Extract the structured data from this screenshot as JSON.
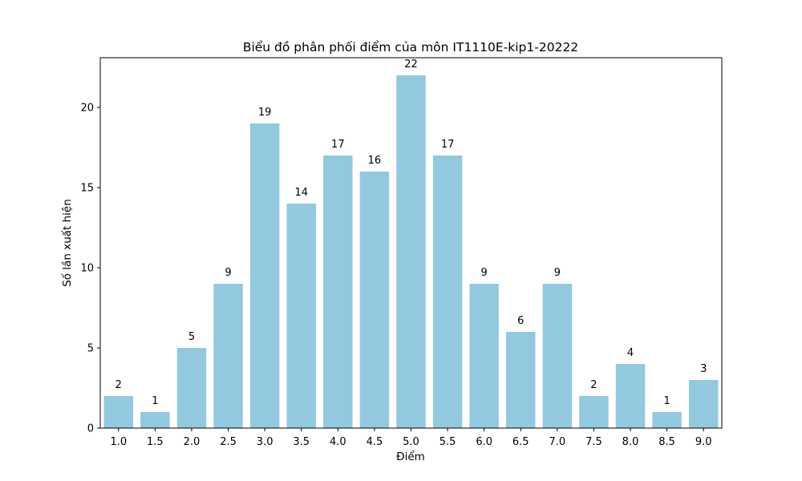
{
  "chart_data": {
    "type": "bar",
    "title": "Biểu đồ phân phối điểm của môn IT1110E-kip1-20222",
    "xlabel": "Điểm",
    "ylabel": "Số lần xuất hiện",
    "categories": [
      "1.0",
      "1.5",
      "2.0",
      "2.5",
      "3.0",
      "3.5",
      "4.0",
      "4.5",
      "5.0",
      "5.5",
      "6.0",
      "6.5",
      "7.0",
      "7.5",
      "8.0",
      "8.5",
      "9.0"
    ],
    "values": [
      2,
      1,
      5,
      9,
      19,
      14,
      17,
      16,
      22,
      17,
      9,
      6,
      9,
      2,
      4,
      1,
      3
    ],
    "ylim": [
      0,
      23.1
    ],
    "yticks": [
      0,
      5,
      10,
      15,
      20
    ],
    "bar_color": "#92c9df",
    "grid": false,
    "legend": "none",
    "data_labels": true
  }
}
